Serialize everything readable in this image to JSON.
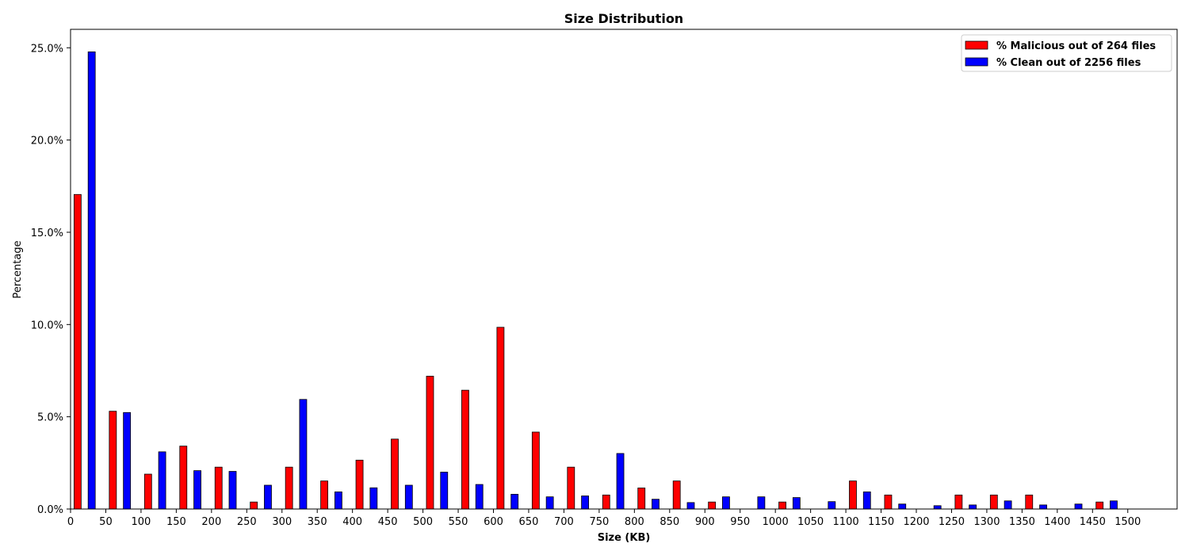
{
  "chart_data": {
    "type": "bar",
    "title": "Size Distribution",
    "xlabel": "Size (KB)",
    "ylabel": "Percentage",
    "xlim": [
      0,
      1570
    ],
    "ylim": [
      0,
      26.0
    ],
    "bin_width": 50,
    "x_ticks": [
      "0",
      "50",
      "100",
      "150",
      "200",
      "250",
      "300",
      "350",
      "400",
      "450",
      "500",
      "550",
      "600",
      "650",
      "700",
      "750",
      "800",
      "850",
      "900",
      "950",
      "1000",
      "1050",
      "1100",
      "1150",
      "1200",
      "1250",
      "1300",
      "1350",
      "1400",
      "1450",
      "1500"
    ],
    "y_ticks": [
      "0.0%",
      "5.0%",
      "10.0%",
      "15.0%",
      "20.0%",
      "25.0%"
    ],
    "legend_position": "top-right",
    "series": [
      {
        "name": "% Malicious out of 264 files",
        "color": "#ff0000",
        "bin_starts": [
          0,
          50,
          100,
          150,
          200,
          250,
          300,
          350,
          400,
          450,
          500,
          550,
          600,
          650,
          700,
          750,
          800,
          850,
          900,
          1000,
          1100,
          1150,
          1250,
          1300,
          1350,
          1450
        ],
        "values": [
          17.05,
          5.3,
          1.89,
          3.41,
          2.27,
          0.38,
          2.27,
          1.52,
          2.65,
          3.79,
          7.2,
          6.44,
          9.85,
          4.17,
          2.27,
          0.76,
          1.14,
          1.52,
          0.38,
          0.38,
          1.52,
          0.76,
          0.76,
          0.76,
          0.76,
          0.38
        ]
      },
      {
        "name": "% Clean out of 2256 files",
        "color": "#0000ff",
        "bin_starts": [
          0,
          50,
          100,
          150,
          200,
          250,
          300,
          350,
          400,
          450,
          500,
          550,
          600,
          650,
          700,
          750,
          800,
          850,
          900,
          950,
          1000,
          1050,
          1100,
          1150,
          1200,
          1250,
          1300,
          1350,
          1400,
          1450
        ],
        "values": [
          24.78,
          5.23,
          3.1,
          2.08,
          2.04,
          1.29,
          5.94,
          0.93,
          1.15,
          1.29,
          2.0,
          1.33,
          0.8,
          0.66,
          0.71,
          3.01,
          0.53,
          0.35,
          0.66,
          0.66,
          0.62,
          0.4,
          0.93,
          0.27,
          0.18,
          0.22,
          0.44,
          0.22,
          0.27,
          0.44
        ]
      }
    ]
  }
}
